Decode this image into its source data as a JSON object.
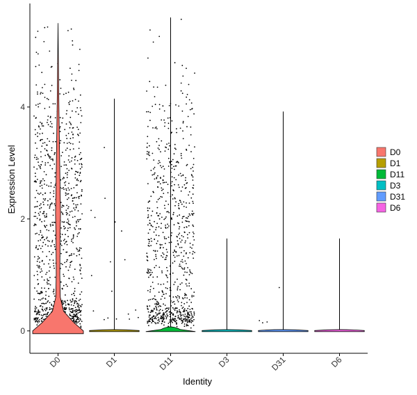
{
  "chart_data": {
    "type": "violin",
    "title": "",
    "xlabel": "Identity",
    "ylabel": "Expression Level",
    "ylim": [
      -0.4,
      5.85
    ],
    "yticks": [
      0,
      2,
      4
    ],
    "grid": false,
    "legend_placement": "right",
    "categories": [
      "D0",
      "D1",
      "D11",
      "D3",
      "D31",
      "D6"
    ],
    "series": [
      {
        "name": "D0",
        "color": "#F8766D",
        "max": 5.5,
        "zero_fraction": 0.38,
        "n_points": 1700,
        "center": 2.3,
        "density_peak": 2.15
      },
      {
        "name": "D1",
        "color": "#B79F00",
        "max": 4.15,
        "zero_fraction": 0.93,
        "n_points": 260,
        "center": 1.5,
        "density_peak": 0
      },
      {
        "name": "D11",
        "color": "#00BA38",
        "max": 5.6,
        "zero_fraction": 0.55,
        "n_points": 1900,
        "center": 1.8,
        "density_peak": 0
      },
      {
        "name": "D3",
        "color": "#00BFC4",
        "max": 1.65,
        "zero_fraction": 0.99,
        "n_points": 6,
        "center": 0.6,
        "density_peak": 0
      },
      {
        "name": "D31",
        "color": "#619CFF",
        "max": 3.92,
        "zero_fraction": 0.96,
        "n_points": 110,
        "center": 1.4,
        "density_peak": 0
      },
      {
        "name": "D6",
        "color": "#F564E3",
        "max": 1.65,
        "zero_fraction": 0.99,
        "n_points": 7,
        "center": 0.5,
        "density_peak": 0
      }
    ]
  }
}
